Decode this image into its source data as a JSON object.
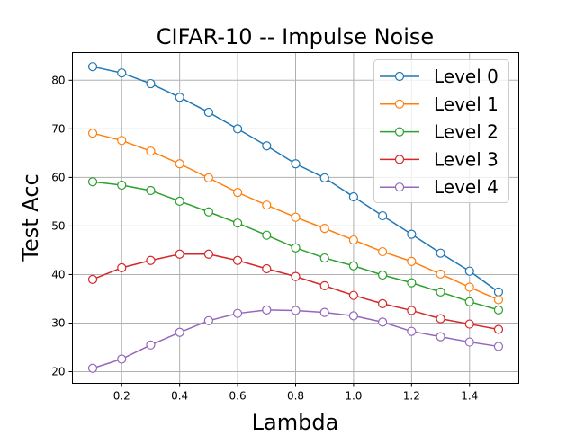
{
  "chart_data": {
    "type": "line",
    "title": "CIFAR-10 -- Impulse Noise",
    "xlabel": "Lambda",
    "ylabel": "Test Acc",
    "xlim": [
      0.03,
      1.57
    ],
    "ylim": [
      17.6,
      85.7
    ],
    "xticks": [
      0.2,
      0.4,
      0.6,
      0.8,
      1.0,
      1.2,
      1.4
    ],
    "xtick_labels": [
      "0.2",
      "0.4",
      "0.6",
      "0.8",
      "1.0",
      "1.2",
      "1.4"
    ],
    "yticks": [
      20,
      30,
      40,
      50,
      60,
      70,
      80
    ],
    "ytick_labels": [
      "20",
      "30",
      "40",
      "50",
      "60",
      "70",
      "80"
    ],
    "grid": true,
    "legend_position": "top-right",
    "x": [
      0.1,
      0.2,
      0.3,
      0.4,
      0.5,
      0.6,
      0.7,
      0.8,
      0.9,
      1.0,
      1.1,
      1.2,
      1.3,
      1.4,
      1.5
    ],
    "series": [
      {
        "name": "Level 0",
        "color": "#1f77b4",
        "values": [
          82.8,
          81.5,
          79.3,
          76.5,
          73.4,
          70.0,
          66.5,
          62.8,
          59.9,
          56.0,
          52.1,
          48.3,
          44.4,
          40.7,
          36.4
        ]
      },
      {
        "name": "Level 1",
        "color": "#ff7f0e",
        "values": [
          69.1,
          67.6,
          65.4,
          62.8,
          59.9,
          56.9,
          54.3,
          51.8,
          49.5,
          47.1,
          44.7,
          42.7,
          40.1,
          37.4,
          34.8
        ]
      },
      {
        "name": "Level 2",
        "color": "#2ca02c",
        "values": [
          59.1,
          58.4,
          57.3,
          55.1,
          52.9,
          50.6,
          48.1,
          45.5,
          43.4,
          41.8,
          39.9,
          38.3,
          36.4,
          34.4,
          32.7
        ]
      },
      {
        "name": "Level 3",
        "color": "#d62728",
        "values": [
          39.0,
          41.4,
          42.9,
          44.2,
          44.2,
          42.9,
          41.2,
          39.6,
          37.7,
          35.7,
          34.0,
          32.6,
          30.9,
          29.8,
          28.7
        ]
      },
      {
        "name": "Level 4",
        "color": "#9467bd",
        "values": [
          20.7,
          22.6,
          25.5,
          28.1,
          30.5,
          32.0,
          32.7,
          32.6,
          32.2,
          31.5,
          30.2,
          28.3,
          27.2,
          26.1,
          25.2
        ]
      }
    ]
  }
}
